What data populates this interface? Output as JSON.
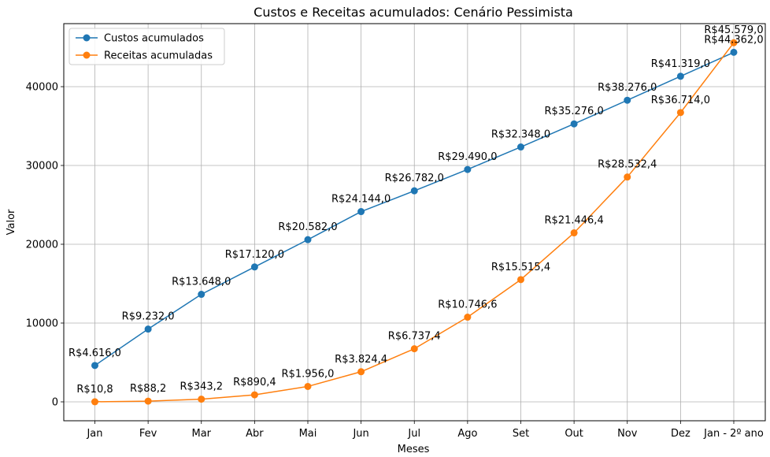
{
  "chart_data": {
    "type": "line",
    "title": "Custos e Receitas acumulados: Cenário Pessimista",
    "xlabel": "Meses",
    "ylabel": "Valor",
    "categories": [
      "Jan",
      "Fev",
      "Mar",
      "Abr",
      "Mai",
      "Jun",
      "Jul",
      "Ago",
      "Set",
      "Out",
      "Nov",
      "Dez",
      "Jan - 2º ano"
    ],
    "ylim": [
      -2400,
      48000
    ],
    "yticks": [
      0,
      10000,
      20000,
      30000,
      40000
    ],
    "ytick_labels": [
      "0",
      "10000",
      "20000",
      "30000",
      "40000"
    ],
    "grid": true,
    "legend_position": "top-left",
    "series": [
      {
        "name": "Custos acumulados",
        "color": "#1f77b4",
        "values": [
          4616.0,
          9232.0,
          13648.0,
          17120.0,
          20582.0,
          24144.0,
          26782.0,
          29490.0,
          32348.0,
          35276.0,
          38276.0,
          41319.0,
          44362.0
        ],
        "labels": [
          "R$4.616,0",
          "R$9.232,0",
          "R$13.648,0",
          "R$17.120,0",
          "R$20.582,0",
          "R$24.144,0",
          "R$26.782,0",
          "R$29.490,0",
          "R$32.348,0",
          "R$35.276,0",
          "R$38.276,0",
          "R$41.319,0",
          "R$44.362,0"
        ]
      },
      {
        "name": "Receitas acumuladas",
        "color": "#ff7f0e",
        "values": [
          10.8,
          88.2,
          343.2,
          890.4,
          1956.0,
          3824.4,
          6737.4,
          10746.6,
          15515.4,
          21446.4,
          28532.4,
          36714.0,
          45579.0
        ],
        "labels": [
          "R$10,8",
          "R$88,2",
          "R$343,2",
          "R$890,4",
          "R$1.956,0",
          "R$3.824,4",
          "R$6.737,4",
          "R$10.746,6",
          "R$15.515,4",
          "R$21.446,4",
          "R$28.532,4",
          "R$36.714,0",
          "R$45.579,0"
        ]
      }
    ]
  }
}
